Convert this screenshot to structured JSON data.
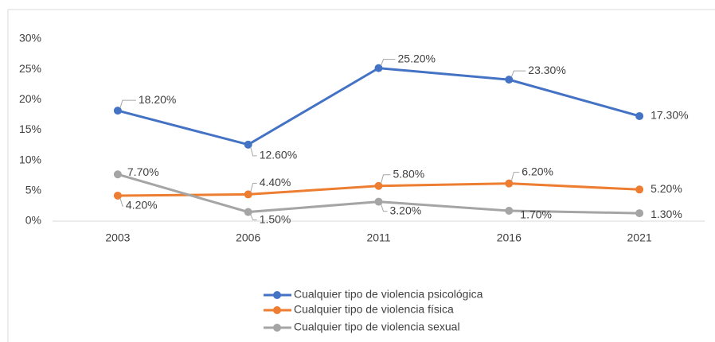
{
  "chart_data": {
    "type": "line",
    "categories": [
      "2003",
      "2006",
      "2011",
      "2016",
      "2021"
    ],
    "series": [
      {
        "name": "Cualquier tipo de violencia psicológica",
        "color": "#4472c4",
        "values": [
          18.2,
          12.6,
          25.2,
          23.3,
          17.3
        ],
        "value_labels": [
          "18.20%",
          "12.60%",
          "25.20%",
          "23.30%",
          "17.30%"
        ]
      },
      {
        "name": "Cualquier tipo de violencia física",
        "color": "#ed7d31",
        "values": [
          4.2,
          4.4,
          5.8,
          6.2,
          5.2
        ],
        "value_labels": [
          "4.20%",
          "4.40%",
          "5.80%",
          "6.20%",
          "5.20%"
        ]
      },
      {
        "name": "Cualquier tipo de violencia sexual",
        "color": "#a5a5a5",
        "values": [
          7.7,
          1.5,
          3.2,
          1.7,
          1.3
        ],
        "value_labels": [
          "7.70%",
          "1.50%",
          "3.20%",
          "1.70%",
          "1.30%"
        ]
      }
    ],
    "ylim": [
      0,
      30
    ],
    "yticks": [
      {
        "value": 0,
        "label": "0%"
      },
      {
        "value": 5,
        "label": "5%"
      },
      {
        "value": 10,
        "label": "10%"
      },
      {
        "value": 15,
        "label": "15%"
      },
      {
        "value": 20,
        "label": "20%"
      },
      {
        "value": 25,
        "label": "25%"
      },
      {
        "value": 30,
        "label": "30%"
      }
    ],
    "grid": false,
    "legend": "bottom"
  }
}
